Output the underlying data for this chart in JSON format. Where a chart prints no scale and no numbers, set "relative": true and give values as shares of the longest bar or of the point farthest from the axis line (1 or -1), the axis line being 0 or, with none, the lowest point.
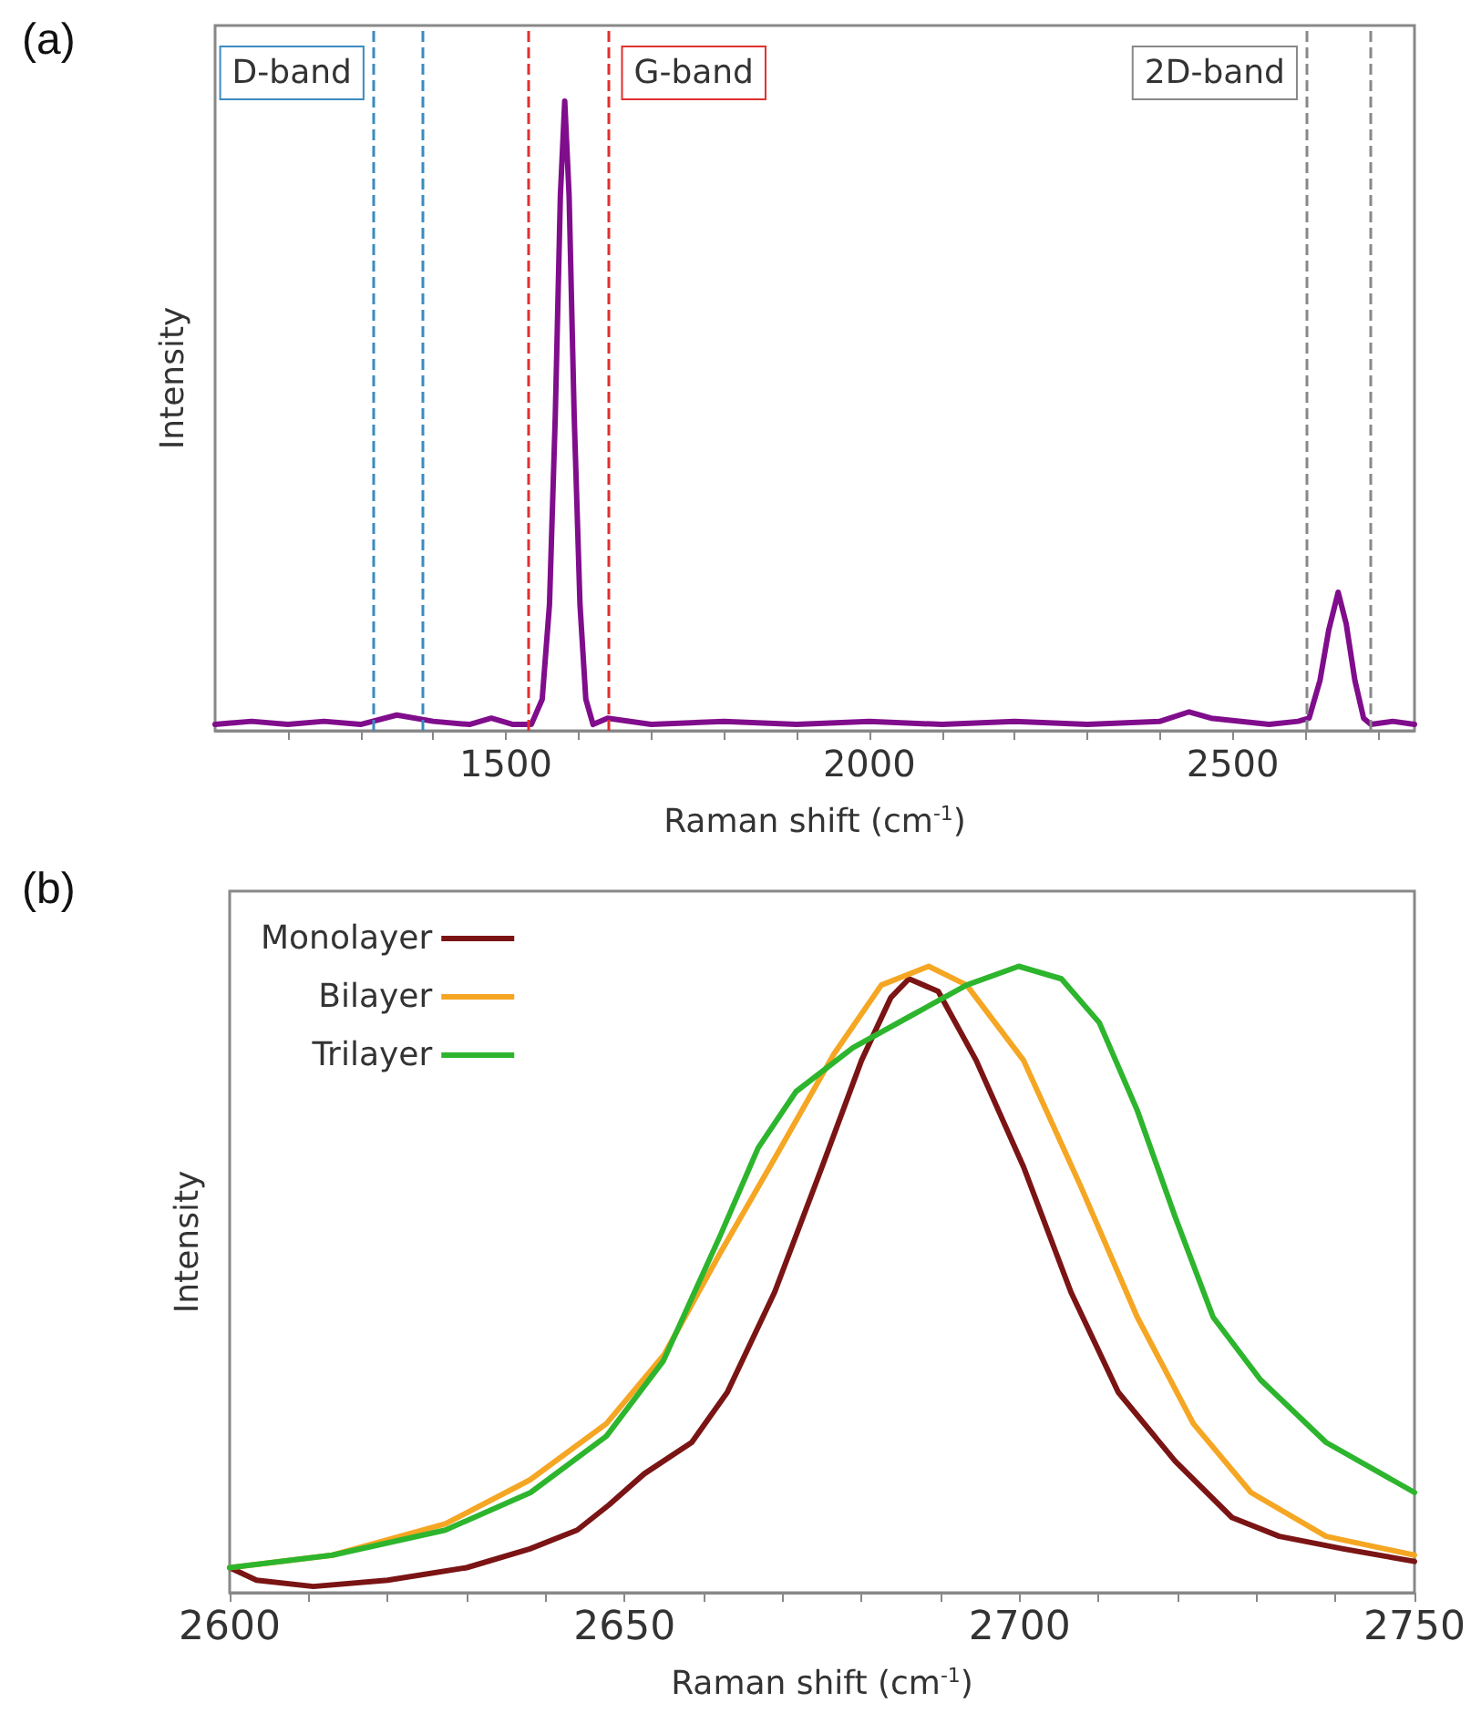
{
  "chart_data": [
    {
      "type": "line",
      "xlabel": "Raman shift (cm$^{-1}$)",
      "ylabel": "Intensity",
      "relative": true,
      "grid": false,
      "annotations": [
        "(a)"
      ],
      "xlim": [
        1100,
        2750
      ],
      "xticks": [
        {
          "value": 1200,
          "label": null
        },
        {
          "value": 1300,
          "label": null
        },
        {
          "value": 1400,
          "label": null
        },
        1500,
        {
          "value": 1600,
          "label": null
        },
        {
          "value": 1700,
          "label": null
        },
        {
          "value": 1800,
          "label": null
        },
        {
          "value": 1900,
          "label": null
        },
        2000,
        {
          "value": 2100,
          "label": null
        },
        {
          "value": 2200,
          "label": null
        },
        {
          "value": 2300,
          "label": null
        },
        {
          "value": 2400,
          "label": null
        },
        2500,
        {
          "value": 2600,
          "label": null
        },
        {
          "value": 2700,
          "label": null
        }
      ],
      "ref_lines": [
        {
          "axis": "x",
          "value": 1318,
          "label": "D-band",
          "color": "#3a8bbf",
          "line_style": "dashed"
        },
        {
          "axis": "x",
          "value": 1385,
          "label": null,
          "color": "#3a8bbf",
          "line_style": "dashed"
        },
        {
          "axis": "x",
          "value": 1530,
          "label": null,
          "color": "#e03030",
          "line_style": "dashed"
        },
        {
          "axis": "x",
          "value": 1641,
          "label": "G-band",
          "color": "#e03030",
          "line_style": "dashed"
        },
        {
          "axis": "x",
          "value": 2602,
          "label": "2D-band",
          "color": "#888888",
          "line_style": "dashed"
        },
        {
          "axis": "x",
          "value": 2690,
          "label": null,
          "color": "#888888",
          "line_style": "dashed"
        }
      ],
      "series": [
        {
          "color": "#800d8c",
          "x": [
            1100,
            1150,
            1200,
            1250,
            1300,
            1350,
            1400,
            1450,
            1480,
            1510,
            1535,
            1550,
            1560,
            1568,
            1575,
            1581,
            1587,
            1594,
            1602,
            1610,
            1620,
            1640,
            1700,
            1800,
            1900,
            2000,
            2100,
            2200,
            2300,
            2400,
            2440,
            2470,
            2550,
            2590,
            2605,
            2620,
            2632,
            2645,
            2656,
            2668,
            2680,
            2690,
            2720,
            2750
          ],
          "values": [
            0.01,
            0.015,
            0.01,
            0.015,
            0.01,
            0.025,
            0.015,
            0.01,
            0.02,
            0.01,
            0.01,
            0.05,
            0.2,
            0.5,
            0.85,
            1,
            0.85,
            0.5,
            0.2,
            0.05,
            0.01,
            0.02,
            0.01,
            0.015,
            0.01,
            0.015,
            0.01,
            0.015,
            0.01,
            0.015,
            0.03,
            0.02,
            0.01,
            0.015,
            0.02,
            0.08,
            0.16,
            0.22,
            0.17,
            0.08,
            0.02,
            0.01,
            0.015,
            0.01
          ]
        }
      ]
    },
    {
      "type": "line",
      "xlabel": "Raman shift (cm$^{-1}$)",
      "ylabel": "Intensity",
      "relative": true,
      "grid": false,
      "legend": "top left",
      "annotations": [
        "(b)"
      ],
      "xlim": [
        2600,
        2750
      ],
      "xticks": [
        2600,
        {
          "value": 2610,
          "label": null
        },
        {
          "value": 2620,
          "label": null
        },
        {
          "value": 2630,
          "label": null
        },
        {
          "value": 2640,
          "label": null
        },
        2650,
        {
          "value": 2660,
          "label": null
        },
        {
          "value": 2670,
          "label": null
        },
        {
          "value": 2680,
          "label": null
        },
        {
          "value": 2690,
          "label": null
        },
        2700,
        {
          "value": 2710,
          "label": null
        },
        {
          "value": 2720,
          "label": null
        },
        {
          "value": 2730,
          "label": null
        },
        {
          "value": 2740,
          "label": null
        },
        2750
      ],
      "series": [
        {
          "name": "Monolayer",
          "color": "#7b1414",
          "x": [
            2600,
            2603.4,
            2610.6,
            2620,
            2630,
            2638,
            2644,
            2648,
            2652.5,
            2658.5,
            2663,
            2669,
            2675,
            2680,
            2683.7,
            2686,
            2689.7,
            2694.5,
            2700.5,
            2706.5,
            2712.5,
            2719.7,
            2726.9,
            2732.9,
            2741,
            2750
          ],
          "values": [
            0.04,
            0.02,
            0.01,
            0.02,
            0.04,
            0.07,
            0.1,
            0.14,
            0.19,
            0.24,
            0.32,
            0.48,
            0.68,
            0.85,
            0.95,
            0.98,
            0.96,
            0.85,
            0.68,
            0.48,
            0.32,
            0.21,
            0.12,
            0.09,
            0.07,
            0.05
          ]
        },
        {
          "name": "Bilayer",
          "color": "#f5a623",
          "x": [
            2600,
            2613,
            2627.3,
            2638,
            2647.7,
            2655,
            2662,
            2669.3,
            2676.5,
            2682.5,
            2688.5,
            2693.3,
            2700.5,
            2707.7,
            2714.9,
            2722,
            2729.3,
            2738.8,
            2750
          ],
          "values": [
            0.04,
            0.06,
            0.11,
            0.18,
            0.27,
            0.38,
            0.54,
            0.7,
            0.86,
            0.97,
            1,
            0.97,
            0.85,
            0.65,
            0.44,
            0.27,
            0.16,
            0.09,
            0.06
          ]
        },
        {
          "name": "Trilayer",
          "color": "#2db52d",
          "x": [
            2600,
            2613,
            2627.3,
            2638.1,
            2647.7,
            2654.9,
            2662.1,
            2666.9,
            2671.7,
            2678.9,
            2686.1,
            2693.3,
            2699.9,
            2705.3,
            2710.1,
            2714.9,
            2719.7,
            2724.5,
            2730.5,
            2738.8,
            2750
          ],
          "values": [
            0.04,
            0.06,
            0.1,
            0.16,
            0.25,
            0.37,
            0.57,
            0.71,
            0.8,
            0.87,
            0.92,
            0.97,
            1,
            0.98,
            0.91,
            0.77,
            0.6,
            0.44,
            0.34,
            0.24,
            0.16
          ]
        }
      ]
    }
  ]
}
